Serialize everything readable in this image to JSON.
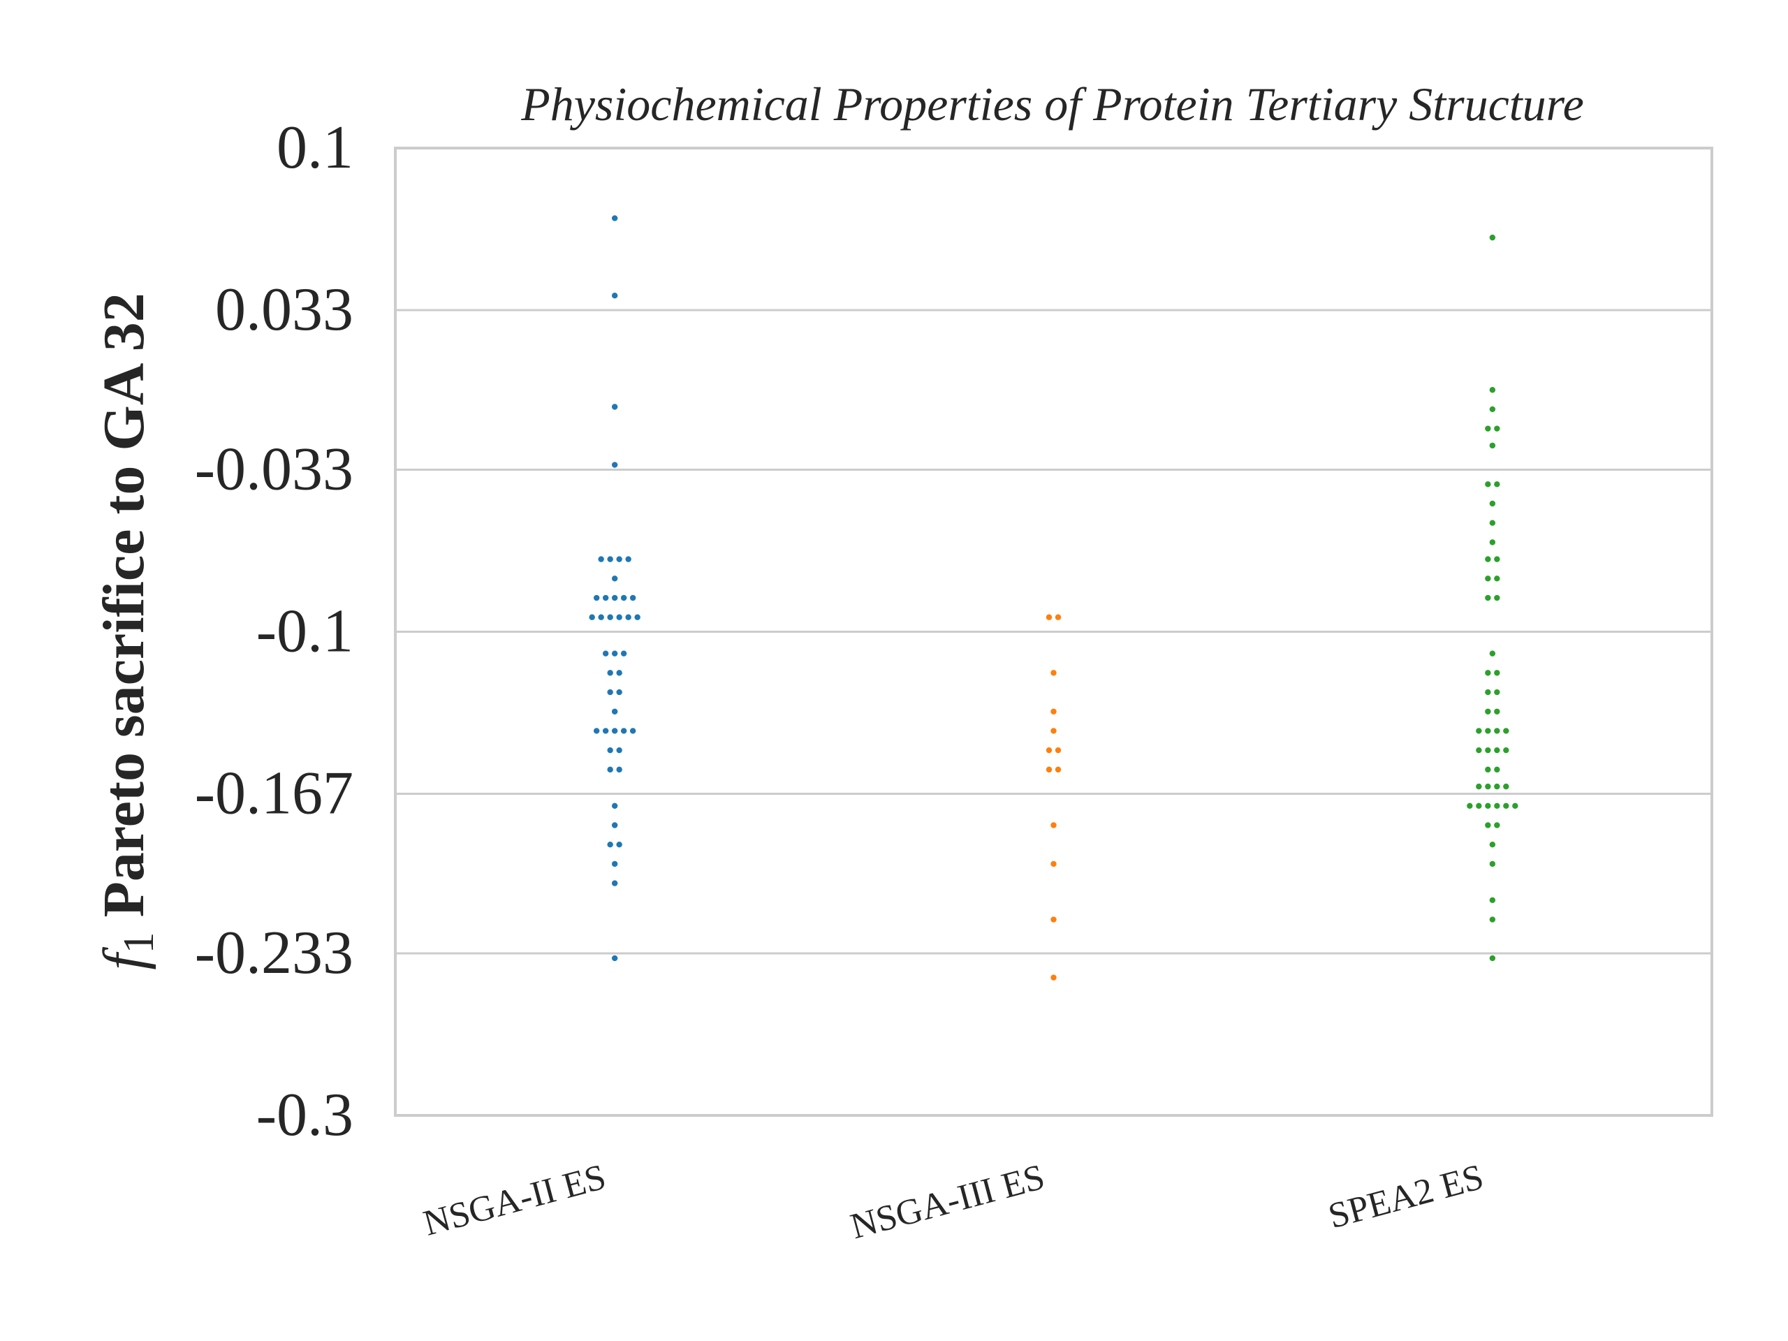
{
  "chart_data": {
    "type": "scatter",
    "subtype": "swarm",
    "title": "Physiochemical Properties of Protein Tertiary Structure",
    "ylabel": {
      "symbol": "f",
      "subscript": "1",
      "text": " Pareto sacrifice to GA 32"
    },
    "ylim": [
      -0.3,
      0.1
    ],
    "yticks": [
      0.1,
      0.033,
      -0.033,
      -0.1,
      -0.167,
      -0.233,
      -0.3
    ],
    "ytick_labels": [
      "0.1",
      "0.033",
      "-0.033",
      "-0.1",
      "-0.167",
      "-0.233",
      "-0.3"
    ],
    "grid": true,
    "categories": [
      "NSGA-II ES",
      "NSGA-III ES",
      "SPEA2 ES"
    ],
    "series": [
      {
        "category": "NSGA-II ES",
        "color": "#1f77b4",
        "values": [
          0.071,
          0.039,
          -0.007,
          -0.031,
          -0.07,
          -0.07,
          -0.07,
          -0.07,
          -0.078,
          -0.086,
          -0.086,
          -0.086,
          -0.086,
          -0.086,
          -0.094,
          -0.094,
          -0.094,
          -0.094,
          -0.094,
          -0.094,
          -0.109,
          -0.109,
          -0.109,
          -0.117,
          -0.117,
          -0.125,
          -0.125,
          -0.133,
          -0.141,
          -0.141,
          -0.141,
          -0.141,
          -0.141,
          -0.149,
          -0.149,
          -0.157,
          -0.157,
          -0.172,
          -0.18,
          -0.188,
          -0.188,
          -0.196,
          -0.204,
          -0.235
        ]
      },
      {
        "category": "NSGA-III ES",
        "color": "#ff7f0e",
        "values": [
          -0.094,
          -0.094,
          -0.117,
          -0.133,
          -0.141,
          -0.149,
          -0.149,
          -0.157,
          -0.157,
          -0.18,
          -0.196,
          -0.219,
          -0.243
        ]
      },
      {
        "category": "SPEA2 ES",
        "color": "#2ca02c",
        "values": [
          0.063,
          0.0,
          -0.008,
          -0.016,
          -0.016,
          -0.023,
          -0.039,
          -0.039,
          -0.047,
          -0.055,
          -0.063,
          -0.07,
          -0.07,
          -0.078,
          -0.078,
          -0.086,
          -0.086,
          -0.109,
          -0.117,
          -0.117,
          -0.125,
          -0.125,
          -0.133,
          -0.133,
          -0.141,
          -0.141,
          -0.141,
          -0.141,
          -0.149,
          -0.149,
          -0.149,
          -0.149,
          -0.157,
          -0.157,
          -0.164,
          -0.164,
          -0.164,
          -0.164,
          -0.172,
          -0.172,
          -0.172,
          -0.172,
          -0.172,
          -0.172,
          -0.18,
          -0.18,
          -0.188,
          -0.196,
          -0.211,
          -0.219,
          -0.235
        ]
      }
    ]
  }
}
